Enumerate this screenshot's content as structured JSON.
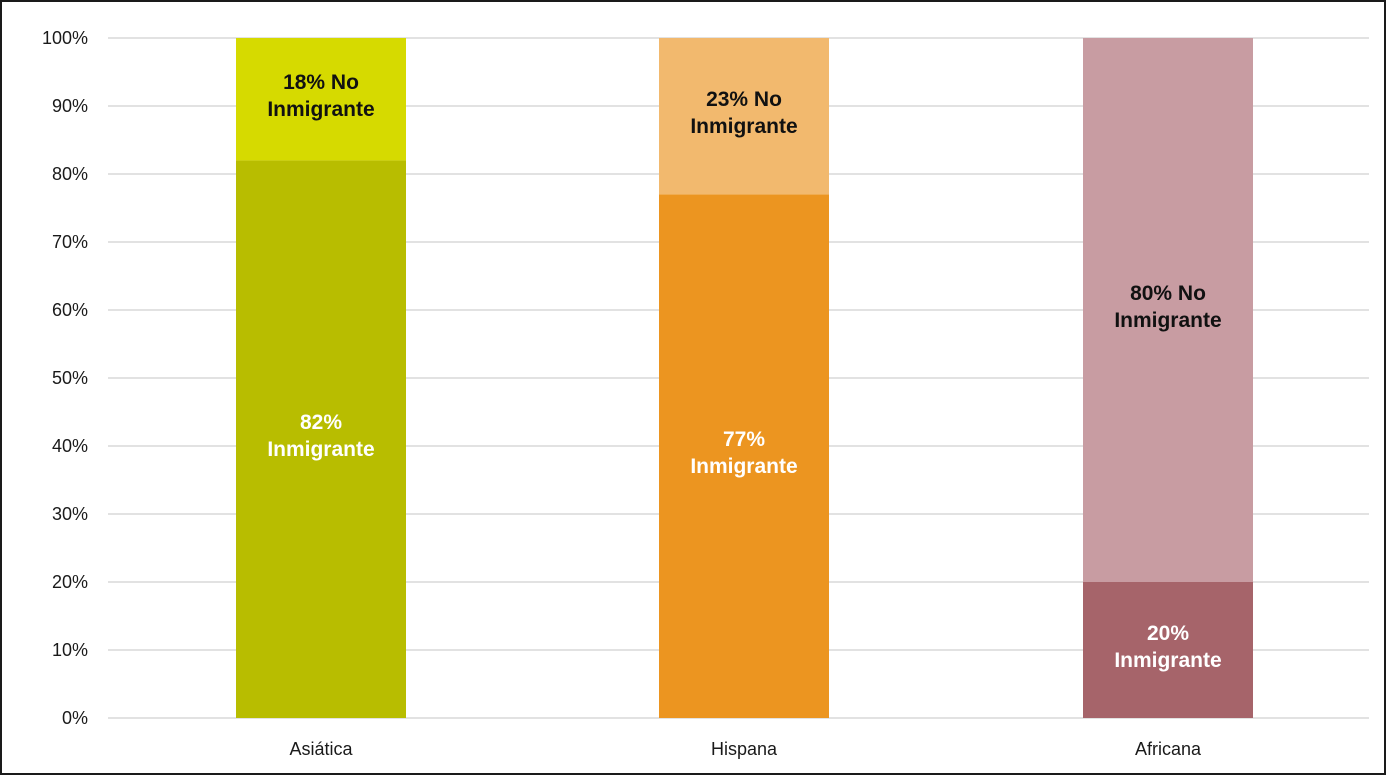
{
  "chart_data": {
    "type": "bar",
    "stacked": true,
    "categories": [
      "Asiática",
      "Hispana",
      "Africana"
    ],
    "series": [
      {
        "name": "Inmigrante",
        "values": [
          82,
          77,
          20
        ],
        "labels": [
          "82% Inmigrante",
          "77% Inmigrante",
          "20% Inmigrante"
        ],
        "colors": [
          "#b8bd00",
          "#ec9520",
          "#a6646a"
        ],
        "label_color": "#ffffff"
      },
      {
        "name": "No Inmigrante",
        "values": [
          18,
          23,
          80
        ],
        "labels": [
          "18% No Inmigrante",
          "23% No Inmigrante",
          "80% No Inmigrante"
        ],
        "colors": [
          "#d6da00",
          "#f2b96e",
          "#c89ca2"
        ],
        "label_color": "#111111"
      }
    ],
    "yticks": [
      "0%",
      "10%",
      "20%",
      "30%",
      "40%",
      "50%",
      "60%",
      "70%",
      "80%",
      "90%",
      "100%"
    ],
    "ylim": [
      0,
      100
    ],
    "grid": true,
    "legend": "none",
    "gridline_color": "#d9d9d9"
  }
}
